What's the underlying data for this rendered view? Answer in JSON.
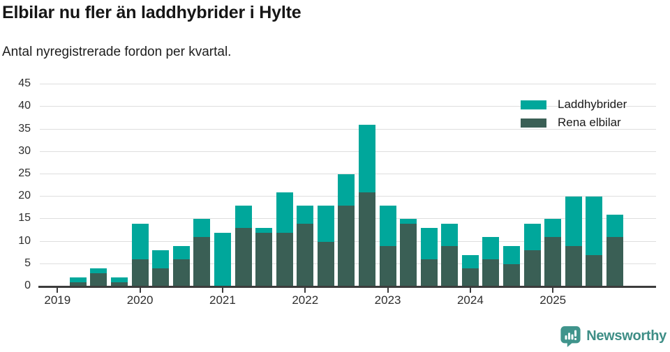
{
  "header": {
    "title": "Elbilar nu fler än laddhybrider i Hylte",
    "subtitle": "Antal nyregistrerade fordon per kvartal."
  },
  "chart_data": {
    "type": "bar",
    "stacked": true,
    "title": "Elbilar nu fler än laddhybrider i Hylte",
    "subtitle": "Antal nyregistrerade fordon per kvartal.",
    "categories": [
      "2019 Q1",
      "2019 Q2",
      "2019 Q3",
      "2019 Q4",
      "2020 Q1",
      "2020 Q2",
      "2020 Q3",
      "2020 Q4",
      "2021 Q1",
      "2021 Q2",
      "2021 Q3",
      "2021 Q4",
      "2022 Q1",
      "2022 Q2",
      "2022 Q3",
      "2022 Q4",
      "2023 Q1",
      "2023 Q2",
      "2023 Q3",
      "2023 Q4",
      "2024 Q1",
      "2024 Q2",
      "2024 Q3",
      "2024 Q4",
      "2025 Q1",
      "2025 Q2",
      "2025 Q3",
      "2025 Q4"
    ],
    "series": [
      {
        "name": "Rena elbilar",
        "stack_order": "bottom",
        "color": "#3a5f55",
        "values": [
          0,
          1,
          3,
          1,
          6,
          4,
          6,
          11,
          0,
          13,
          12,
          12,
          14,
          10,
          18,
          21,
          9,
          14,
          6,
          9,
          4,
          6,
          5,
          8,
          11,
          9,
          7,
          11
        ]
      },
      {
        "name": "Laddhybrider",
        "stack_order": "top",
        "color": "#00a79b",
        "values": [
          0,
          1,
          1,
          1,
          8,
          4,
          3,
          4,
          12,
          5,
          1,
          9,
          4,
          8,
          7,
          15,
          9,
          1,
          7,
          5,
          3,
          5,
          4,
          6,
          4,
          11,
          13,
          5
        ]
      }
    ],
    "totals": [
      0,
      2,
      4,
      2,
      14,
      8,
      9,
      15,
      12,
      18,
      13,
      21,
      18,
      18,
      25,
      36,
      18,
      15,
      13,
      14,
      7,
      11,
      9,
      14,
      15,
      20,
      20,
      16
    ],
    "xlabel": "",
    "ylabel": "",
    "x_tick_labels": [
      "2019",
      "2020",
      "2021",
      "2022",
      "2023",
      "2024",
      "2025"
    ],
    "yticks": [
      0,
      5,
      10,
      15,
      20,
      25,
      30,
      35,
      40,
      45
    ],
    "ylim": [
      0,
      45
    ],
    "grid": true,
    "legend_position": "top-right"
  },
  "legend": {
    "items": [
      {
        "label": "Laddhybrider",
        "color": "#00a79b"
      },
      {
        "label": "Rena elbilar",
        "color": "#3a5f55"
      }
    ]
  },
  "footer": {
    "brand": "Newsworthy",
    "brand_color": "#3e8e86",
    "icon_color": "#40948c"
  },
  "colors": {
    "laddhybrider": "#00a79b",
    "rena_elbilar": "#3a5f55",
    "gridline": "#dedede",
    "axis": "#3c3c3c",
    "text": "#2e2e2e"
  }
}
